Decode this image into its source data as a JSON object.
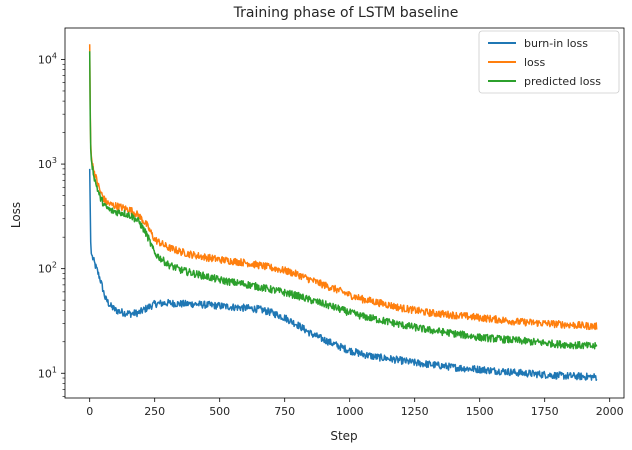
{
  "chart_data": {
    "type": "line",
    "title": "Training phase of LSTM baseline",
    "xlabel": "Step",
    "ylabel": "Loss",
    "yscale": "log",
    "xlim": [
      -95,
      2055
    ],
    "ylim": [
      5.8,
      20000
    ],
    "x_ticks": [
      0,
      250,
      500,
      750,
      1000,
      1250,
      1500,
      1750,
      2000
    ],
    "y_ticks": [
      {
        "value": 10,
        "base": "10",
        "exp": "1"
      },
      {
        "value": 100,
        "base": "10",
        "exp": "2"
      },
      {
        "value": 1000,
        "base": "10",
        "exp": "3"
      },
      {
        "value": 10000,
        "base": "10",
        "exp": "4"
      }
    ],
    "grid": false,
    "legend_position": "top-right",
    "series": [
      {
        "name": "burn-in loss",
        "color": "#1f77b4",
        "x": [
          0,
          2,
          4,
          6,
          10,
          20,
          40,
          60,
          80,
          100,
          130,
          160,
          190,
          220,
          250,
          300,
          350,
          400,
          450,
          500,
          550,
          600,
          650,
          700,
          750,
          800,
          850,
          900,
          950,
          1000,
          1050,
          1100,
          1150,
          1200,
          1250,
          1300,
          1350,
          1400,
          1450,
          1500,
          1550,
          1600,
          1650,
          1700,
          1750,
          1800,
          1850,
          1900,
          1950
        ],
        "y": [
          900,
          400,
          180,
          140,
          130,
          110,
          80,
          52,
          44,
          40,
          38,
          37,
          38,
          42,
          46,
          47,
          46,
          46,
          45,
          44,
          43,
          42,
          41,
          38,
          34,
          29,
          24,
          21,
          18.5,
          16.5,
          15.2,
          14.3,
          13.8,
          13.2,
          12.6,
          12.2,
          11.8,
          11.4,
          11.1,
          10.9,
          10.6,
          10.4,
          10.1,
          9.9,
          9.7,
          9.5,
          9.4,
          9.3,
          9.2
        ]
      },
      {
        "name": "loss",
        "color": "#ff7f0e",
        "x": [
          0,
          2,
          4,
          6,
          10,
          20,
          40,
          60,
          80,
          100,
          130,
          160,
          190,
          220,
          250,
          300,
          350,
          400,
          450,
          500,
          550,
          600,
          650,
          700,
          750,
          800,
          850,
          900,
          950,
          1000,
          1050,
          1100,
          1150,
          1200,
          1250,
          1300,
          1350,
          1400,
          1450,
          1500,
          1550,
          1600,
          1650,
          1700,
          1750,
          1800,
          1850,
          1900,
          1950
        ],
        "y": [
          14000,
          3500,
          1600,
          1200,
          1000,
          800,
          550,
          440,
          410,
          400,
          380,
          360,
          320,
          260,
          190,
          160,
          145,
          135,
          128,
          122,
          118,
          114,
          108,
          102,
          96,
          88,
          78,
          70,
          63,
          56,
          51,
          48,
          45,
          42,
          40,
          38,
          37,
          36,
          35,
          34,
          33,
          32,
          31,
          30.5,
          30,
          29.5,
          29,
          28.5,
          28
        ]
      },
      {
        "name": "predicted loss",
        "color": "#2ca02c",
        "x": [
          0,
          2,
          4,
          6,
          10,
          20,
          40,
          60,
          80,
          100,
          130,
          160,
          190,
          220,
          250,
          300,
          350,
          400,
          450,
          500,
          550,
          600,
          650,
          700,
          750,
          800,
          850,
          900,
          950,
          1000,
          1050,
          1100,
          1150,
          1200,
          1250,
          1300,
          1350,
          1400,
          1450,
          1500,
          1550,
          1600,
          1650,
          1700,
          1750,
          1800,
          1850,
          1900,
          1950
        ],
        "y": [
          12000,
          3000,
          1400,
          1100,
          950,
          700,
          480,
          390,
          360,
          350,
          340,
          320,
          280,
          210,
          140,
          110,
          97,
          90,
          84,
          78,
          74,
          71,
          67,
          63,
          59,
          55,
          50,
          46,
          42,
          38,
          35,
          33,
          31,
          29,
          27.5,
          26,
          25,
          24,
          23,
          22,
          21.5,
          21,
          20.5,
          20,
          19.5,
          19,
          18.7,
          18.4,
          18
        ]
      }
    ]
  }
}
